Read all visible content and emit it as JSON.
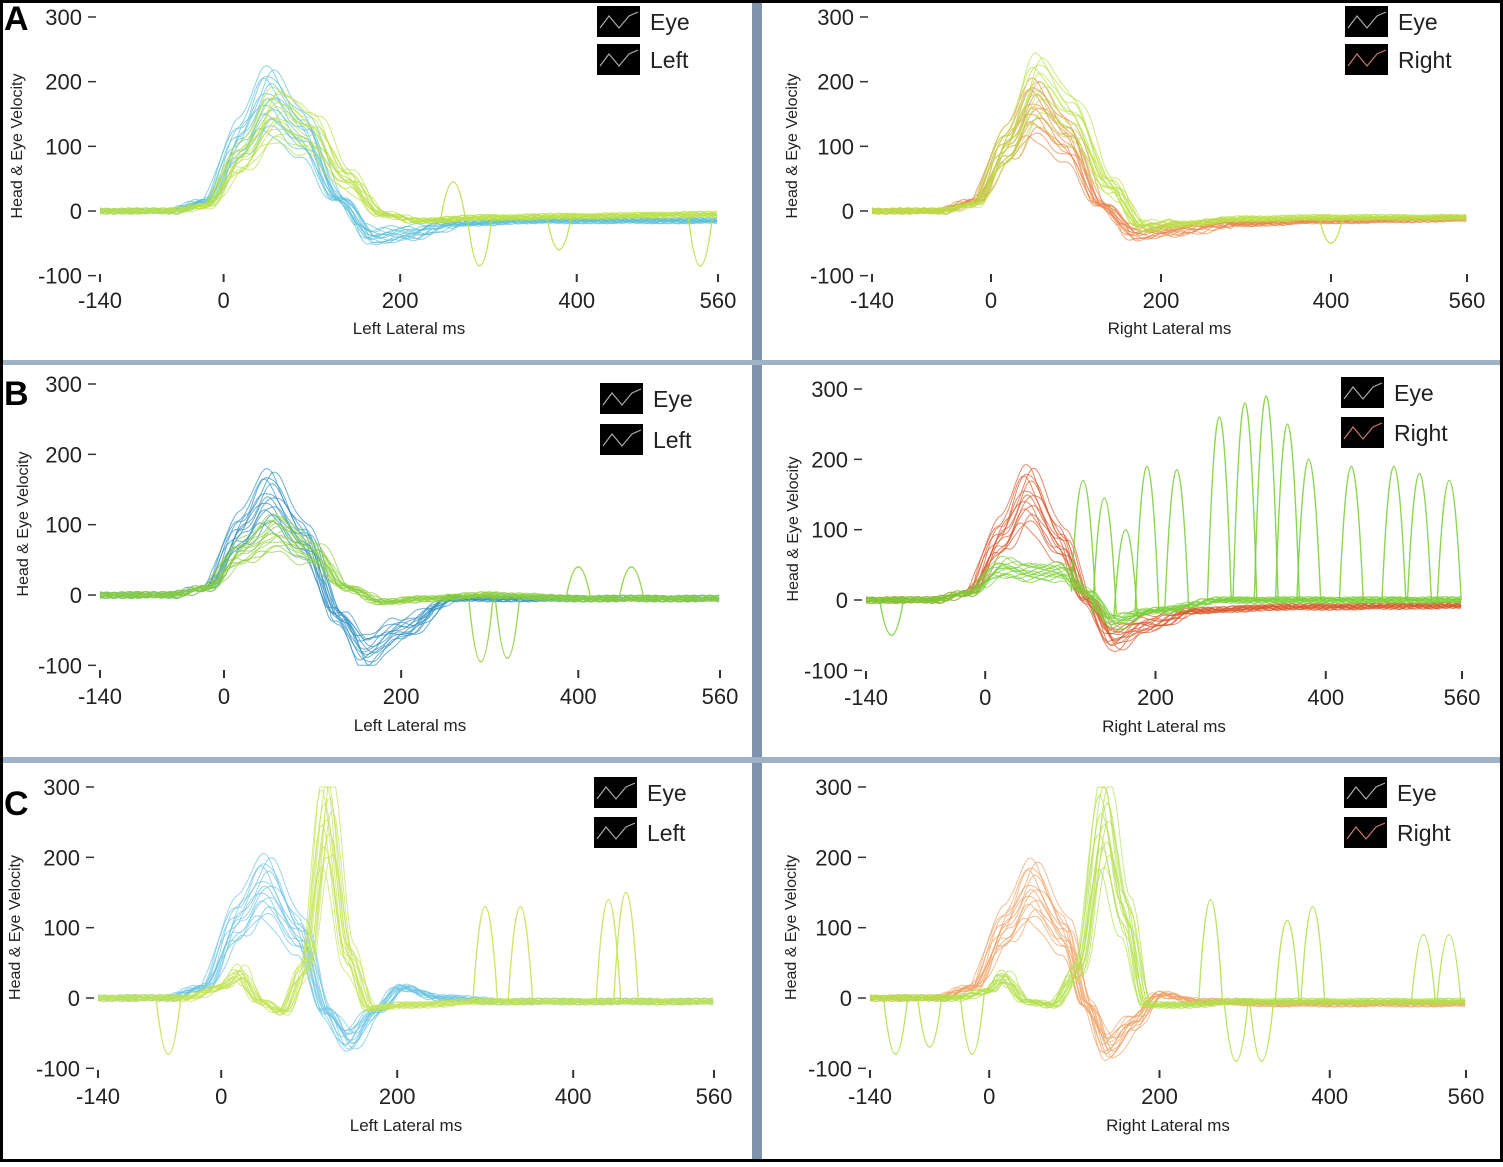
{
  "chart_data": [
    {
      "panel_letter": "A",
      "type": "line",
      "xlabel": "Left Lateral ms",
      "ylabel": "Head & Eye Velocity",
      "xlim": [
        -140,
        560
      ],
      "ylim": [
        -100,
        300
      ],
      "xticks": [
        "-140",
        "0",
        "200",
        "400",
        "560"
      ],
      "yticks": [
        "300",
        "200",
        "100",
        "0",
        "-100"
      ],
      "legend": [
        "Eye",
        "Left"
      ],
      "legend_position": "top-right",
      "series": [
        {
          "role": "head",
          "color": "#5bbfd8",
          "x": [
            -140,
            -60,
            -20,
            20,
            50,
            90,
            130,
            170,
            210,
            260,
            350,
            450,
            560
          ],
          "y": [
            0,
            0,
            15,
            110,
            175,
            120,
            20,
            -40,
            -35,
            -20,
            -15,
            -15,
            -15
          ]
        },
        {
          "role": "eye",
          "color": "#b9df45",
          "x": [
            -140,
            -60,
            -20,
            20,
            60,
            100,
            140,
            180,
            220,
            300,
            400,
            560
          ],
          "y": [
            0,
            0,
            8,
            80,
            150,
            120,
            50,
            -5,
            -15,
            -10,
            -8,
            -5
          ],
          "spikes": [
            [
              260,
              45
            ],
            [
              290,
              -85
            ],
            [
              380,
              -60
            ],
            [
              540,
              -85
            ]
          ]
        }
      ]
    },
    {
      "panel_letter": "",
      "type": "line",
      "xlabel": "Right Lateral ms",
      "ylabel": "Head & Eye Velocity",
      "xlim": [
        -140,
        560
      ],
      "ylim": [
        -100,
        300
      ],
      "xticks": [
        "-140",
        "0",
        "200",
        "400",
        "560"
      ],
      "yticks": [
        "300",
        "200",
        "100",
        "0",
        "-100"
      ],
      "legend": [
        "Eye",
        "Right"
      ],
      "legend_position": "top-right",
      "series": [
        {
          "role": "head",
          "color": "#e8864e",
          "x": [
            -140,
            -60,
            -20,
            20,
            50,
            90,
            130,
            170,
            210,
            280,
            400,
            560
          ],
          "y": [
            0,
            0,
            15,
            100,
            160,
            110,
            10,
            -35,
            -30,
            -20,
            -15,
            -12
          ]
        },
        {
          "role": "eye",
          "color": "#b9df45",
          "x": [
            -140,
            -60,
            -20,
            20,
            55,
            95,
            140,
            180,
            220,
            300,
            400,
            560
          ],
          "y": [
            0,
            0,
            10,
            100,
            190,
            140,
            40,
            -25,
            -20,
            -12,
            -10,
            -10
          ],
          "spikes": [
            [
              400,
              -50
            ]
          ]
        }
      ]
    },
    {
      "panel_letter": "B",
      "type": "line",
      "xlabel": "Left Lateral ms",
      "ylabel": "Head & Eye Velocity",
      "xlim": [
        -140,
        560
      ],
      "ylim": [
        -100,
        300
      ],
      "xticks": [
        "-140",
        "0",
        "200",
        "400",
        "560"
      ],
      "yticks": [
        "300",
        "200",
        "100",
        "0",
        "-100"
      ],
      "legend": [
        "Eye",
        "Left"
      ],
      "legend_position": "top-right",
      "series": [
        {
          "role": "head",
          "color": "#2e8fc2",
          "x": [
            -140,
            -60,
            -20,
            20,
            50,
            90,
            130,
            160,
            200,
            260,
            350,
            560
          ],
          "y": [
            0,
            0,
            10,
            90,
            140,
            80,
            -30,
            -80,
            -50,
            -5,
            -5,
            -5
          ]
        },
        {
          "role": "eye",
          "color": "#8ccf3a",
          "x": [
            -140,
            -60,
            -20,
            20,
            60,
            100,
            140,
            180,
            230,
            300,
            400,
            560
          ],
          "y": [
            0,
            0,
            10,
            60,
            90,
            60,
            10,
            -10,
            -5,
            0,
            -5,
            -5
          ],
          "spikes": [
            [
              290,
              -95
            ],
            [
              320,
              -90
            ],
            [
              400,
              40
            ],
            [
              460,
              40
            ]
          ]
        }
      ]
    },
    {
      "panel_letter": "",
      "type": "line",
      "xlabel": "Right Lateral ms",
      "ylabel": "Head & Eye Velocity",
      "xlim": [
        -140,
        560
      ],
      "ylim": [
        -100,
        300
      ],
      "xticks": [
        "-140",
        "0",
        "200",
        "400",
        "560"
      ],
      "yticks": [
        "300",
        "200",
        "100",
        "0",
        "-100"
      ],
      "legend": [
        "Eye",
        "Right"
      ],
      "legend_position": "top-right",
      "series": [
        {
          "role": "head",
          "color": "#d9582c",
          "x": [
            -140,
            -60,
            -20,
            20,
            50,
            90,
            120,
            150,
            190,
            250,
            350,
            560
          ],
          "y": [
            0,
            0,
            10,
            90,
            150,
            80,
            0,
            -55,
            -35,
            -15,
            -10,
            -8
          ]
        },
        {
          "role": "eye",
          "color": "#78cf34",
          "x": [
            -140,
            -60,
            -20,
            20,
            50,
            90,
            120,
            150,
            200,
            280,
            400,
            560
          ],
          "y": [
            0,
            0,
            10,
            45,
            40,
            40,
            10,
            -30,
            -15,
            0,
            0,
            0
          ],
          "spikes": [
            [
              -110,
              -50
            ],
            [
              115,
              170
            ],
            [
              140,
              145
            ],
            [
              165,
              100
            ],
            [
              190,
              190
            ],
            [
              225,
              185
            ],
            [
              275,
              260
            ],
            [
              305,
              280
            ],
            [
              330,
              290
            ],
            [
              355,
              250
            ],
            [
              380,
              200
            ],
            [
              430,
              190
            ],
            [
              480,
              190
            ],
            [
              510,
              180
            ],
            [
              545,
              170
            ]
          ]
        }
      ]
    },
    {
      "panel_letter": "C",
      "type": "line",
      "xlabel": "Left Lateral ms",
      "ylabel": "Head & Eye Velocity",
      "xlim": [
        -140,
        560
      ],
      "ylim": [
        -100,
        300
      ],
      "xticks": [
        "-140",
        "0",
        "200",
        "400",
        "560"
      ],
      "yticks": [
        "300",
        "200",
        "100",
        "0",
        "-100"
      ],
      "legend": [
        "Eye",
        "Left"
      ],
      "legend_position": "top-right",
      "series": [
        {
          "role": "head",
          "color": "#6cc4e2",
          "x": [
            -140,
            -60,
            -20,
            20,
            50,
            90,
            120,
            145,
            175,
            205,
            250,
            320,
            560
          ],
          "y": [
            0,
            0,
            15,
            110,
            160,
            90,
            -20,
            -60,
            -20,
            15,
            0,
            -5,
            -5
          ]
        },
        {
          "role": "eye",
          "color": "#c2e253",
          "x": [
            -140,
            -40,
            0,
            20,
            45,
            70,
            95,
            120,
            145,
            170,
            210,
            300,
            560
          ],
          "y": [
            0,
            0,
            15,
            35,
            -5,
            -20,
            40,
            260,
            60,
            -15,
            -10,
            -5,
            -5
          ],
          "spikes": [
            [
              -60,
              -80
            ],
            [
              300,
              130
            ],
            [
              340,
              130
            ],
            [
              440,
              140
            ],
            [
              460,
              150
            ]
          ]
        }
      ]
    },
    {
      "panel_letter": "",
      "type": "line",
      "xlabel": "Right Lateral ms",
      "ylabel": "Head & Eye Velocity",
      "xlim": [
        -140,
        560
      ],
      "ylim": [
        -100,
        300
      ],
      "xticks": [
        "-140",
        "0",
        "200",
        "400",
        "560"
      ],
      "yticks": [
        "300",
        "200",
        "100",
        "0",
        "-100"
      ],
      "legend": [
        "Eye",
        "Right"
      ],
      "legend_position": "top-right",
      "series": [
        {
          "role": "head",
          "color": "#f0a266",
          "x": [
            -140,
            -60,
            -20,
            20,
            50,
            90,
            115,
            140,
            170,
            200,
            250,
            350,
            560
          ],
          "y": [
            0,
            0,
            15,
            100,
            155,
            90,
            -10,
            -70,
            -35,
            5,
            -5,
            -8,
            -8
          ]
        },
        {
          "role": "eye",
          "color": "#b2e04a",
          "x": [
            -140,
            -40,
            0,
            15,
            45,
            75,
            105,
            135,
            160,
            185,
            220,
            300,
            560
          ],
          "y": [
            0,
            0,
            10,
            30,
            -5,
            -10,
            40,
            250,
            120,
            -10,
            -10,
            -5,
            -5
          ],
          "spikes": [
            [
              -110,
              -80
            ],
            [
              -70,
              -70
            ],
            [
              -20,
              -80
            ],
            [
              260,
              140
            ],
            [
              290,
              -90
            ],
            [
              320,
              -90
            ],
            [
              350,
              110
            ],
            [
              380,
              130
            ],
            [
              510,
              90
            ],
            [
              540,
              90
            ]
          ]
        }
      ]
    }
  ]
}
